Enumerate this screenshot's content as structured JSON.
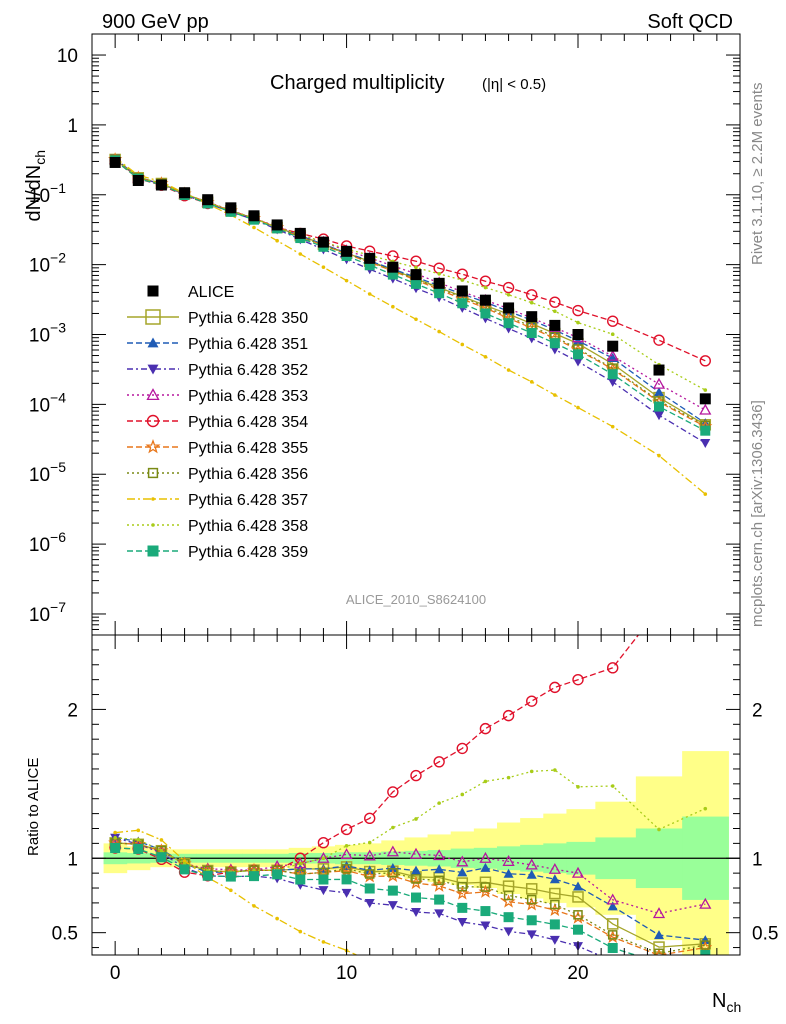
{
  "header": {
    "left": "900 GeV pp",
    "right": "Soft QCD",
    "side_top": "Rivet 3.1.10, ≥ 2.2M events",
    "side_bottom": "mcplots.cern.ch [arXiv:1306.3436]"
  },
  "chart_data": [
    {
      "type": "scatter",
      "title": "Charged multiplicity",
      "subtitle": "(|η| < 0.5)",
      "ylabel": "dN/dN",
      "ylabel_sub": "ch",
      "xlabel": "N",
      "xlabel_sub": "ch",
      "analysis_id": "ALICE_2010_S8624100",
      "y_scale": "log",
      "xlim": [
        -1,
        27
      ],
      "ylim": [
        5e-08,
        20
      ],
      "y_tick_labels": [
        {
          "value": 10,
          "base": "10",
          "exp": ""
        },
        {
          "value": 1,
          "base": "1",
          "exp": ""
        },
        {
          "value": 0.1,
          "base": "10",
          "exp": "−1"
        },
        {
          "value": 0.01,
          "base": "10",
          "exp": "−2"
        },
        {
          "value": 0.001,
          "base": "10",
          "exp": "−3"
        },
        {
          "value": 0.0001,
          "base": "10",
          "exp": "−4"
        },
        {
          "value": 1e-05,
          "base": "10",
          "exp": "−5"
        },
        {
          "value": 1e-06,
          "base": "10",
          "exp": "−6"
        },
        {
          "value": 1e-07,
          "base": "10",
          "exp": "−7"
        }
      ],
      "x_tick_labels": [
        "0",
        "10",
        "20"
      ],
      "legend_position": "left-middle",
      "data_x": [
        0,
        1,
        2,
        3,
        4,
        5,
        6,
        7,
        8,
        9,
        10,
        11,
        12,
        13,
        14,
        15,
        16,
        17,
        18,
        19,
        20,
        21.5,
        23.5,
        25.5
      ],
      "data_series": {
        "name": "ALICE",
        "color": "#000000",
        "values": [
          0.29,
          0.16,
          0.138,
          0.107,
          0.085,
          0.065,
          0.05,
          0.037,
          0.028,
          0.021,
          0.0155,
          0.0123,
          0.0092,
          0.0072,
          0.0054,
          0.0042,
          0.0031,
          0.0024,
          0.0018,
          0.00135,
          0.001,
          0.00068,
          0.00031,
          0.00012
        ]
      },
      "series": [
        {
          "name": "Pythia 6.428 350",
          "color": "#a5a52a",
          "values": [
            0.32,
            0.175,
            0.145,
            0.103,
            0.078,
            0.059,
            0.046,
            0.034,
            0.026,
            0.0195,
            0.0146,
            0.0112,
            0.0084,
            0.0063,
            0.0047,
            0.0035,
            0.0026,
            0.00195,
            0.00143,
            0.00103,
            0.00074,
            0.00038,
            0.000125,
            5.1e-05
          ]
        },
        {
          "name": "Pythia 6.428 351",
          "color": "#1f5bb5",
          "values": [
            0.33,
            0.178,
            0.146,
            0.103,
            0.077,
            0.059,
            0.046,
            0.034,
            0.026,
            0.0195,
            0.0147,
            0.0113,
            0.0086,
            0.0066,
            0.005,
            0.0038,
            0.0029,
            0.00215,
            0.0016,
            0.00116,
            0.00081,
            0.00046,
            0.00015,
            5.4e-05
          ]
        },
        {
          "name": "Pythia 6.428 352",
          "color": "#4a2fb0",
          "values": [
            0.33,
            0.175,
            0.143,
            0.1,
            0.075,
            0.057,
            0.044,
            0.032,
            0.023,
            0.0165,
            0.0119,
            0.0086,
            0.0063,
            0.0046,
            0.0034,
            0.0024,
            0.0017,
            0.00122,
            0.00088,
            0.00061,
            0.00041,
            0.00021,
            7e-05,
            2.8e-05
          ]
        },
        {
          "name": "Pythia 6.428 353",
          "color": "#b5179e",
          "values": [
            0.32,
            0.175,
            0.144,
            0.103,
            0.079,
            0.06,
            0.046,
            0.035,
            0.027,
            0.021,
            0.0159,
            0.0125,
            0.0096,
            0.0074,
            0.0055,
            0.0041,
            0.0031,
            0.00235,
            0.00172,
            0.00125,
            0.0009,
            0.00049,
            0.000195,
            8.3e-05
          ]
        },
        {
          "name": "Pythia 6.428 354",
          "color": "#e0102a",
          "values": [
            0.31,
            0.17,
            0.137,
            0.097,
            0.075,
            0.059,
            0.046,
            0.034,
            0.028,
            0.0232,
            0.0185,
            0.0156,
            0.0133,
            0.0112,
            0.0089,
            0.0073,
            0.0058,
            0.0047,
            0.0037,
            0.0029,
            0.0022,
            0.00155,
            0.00083,
            0.00042
          ]
        },
        {
          "name": "Pythia 6.428 355",
          "color": "#e8761a",
          "values": [
            0.32,
            0.175,
            0.145,
            0.103,
            0.078,
            0.059,
            0.046,
            0.034,
            0.025,
            0.019,
            0.0142,
            0.0108,
            0.0081,
            0.006,
            0.0044,
            0.0032,
            0.0024,
            0.0017,
            0.00124,
            0.00088,
            0.0006,
            0.00032,
            0.000108,
            4.8e-05
          ]
        },
        {
          "name": "Pythia 6.428 356",
          "color": "#7a8a15",
          "values": [
            0.32,
            0.175,
            0.145,
            0.103,
            0.078,
            0.059,
            0.046,
            0.034,
            0.025,
            0.019,
            0.0144,
            0.011,
            0.0083,
            0.0062,
            0.0046,
            0.0034,
            0.0025,
            0.0018,
            0.0013,
            0.00093,
            0.00062,
            0.00033,
            0.000112,
            5e-05
          ]
        },
        {
          "name": "Pythia 6.428 357",
          "color": "#e8c000",
          "values": [
            0.34,
            0.19,
            0.155,
            0.105,
            0.074,
            0.051,
            0.034,
            0.022,
            0.0142,
            0.0092,
            0.0059,
            0.0038,
            0.0025,
            0.00165,
            0.0011,
            0.00072,
            0.00048,
            0.00031,
            0.00021,
            0.000136,
            9e-05,
            4.8e-05,
            1.85e-05,
            5.2e-06
          ]
        },
        {
          "name": "Pythia 6.428 358",
          "color": "#a8cc18",
          "values": [
            0.33,
            0.18,
            0.145,
            0.103,
            0.078,
            0.059,
            0.046,
            0.034,
            0.027,
            0.021,
            0.0168,
            0.0136,
            0.0111,
            0.0091,
            0.0074,
            0.006,
            0.0047,
            0.0037,
            0.00285,
            0.00215,
            0.00148,
            0.00101,
            0.00037,
            0.00016
          ]
        },
        {
          "name": "Pythia 6.428 359",
          "color": "#1aaa7a",
          "values": [
            0.31,
            0.17,
            0.139,
            0.099,
            0.075,
            0.057,
            0.044,
            0.033,
            0.024,
            0.018,
            0.0133,
            0.0098,
            0.0072,
            0.0053,
            0.0039,
            0.0028,
            0.002,
            0.00145,
            0.00105,
            0.00075,
            0.00052,
            0.00027,
            9.3e-05,
            4.2e-05
          ]
        }
      ]
    },
    {
      "type": "line",
      "ylabel": "Ratio to ALICE",
      "xlim": [
        -1,
        27
      ],
      "ylim": [
        0.35,
        2.5
      ],
      "y_tick_labels": [
        "0.5",
        "1",
        "2"
      ],
      "reference_line": 1,
      "band_inner_color": "#99ff99",
      "band_outer_color": "#ffff88",
      "band_inner_halfwidth": [
        0.04,
        0.035,
        0.03,
        0.03,
        0.03,
        0.03,
        0.03,
        0.03,
        0.035,
        0.035,
        0.04,
        0.04,
        0.045,
        0.05,
        0.055,
        0.065,
        0.07,
        0.08,
        0.09,
        0.1,
        0.11,
        0.14,
        0.2,
        0.28
      ],
      "band_outer_halfwidth": [
        0.1,
        0.08,
        0.06,
        0.06,
        0.06,
        0.06,
        0.06,
        0.06,
        0.07,
        0.08,
        0.09,
        0.1,
        0.12,
        0.14,
        0.16,
        0.18,
        0.2,
        0.24,
        0.27,
        0.3,
        0.33,
        0.38,
        0.55,
        0.72
      ],
      "note": ""
    }
  ]
}
